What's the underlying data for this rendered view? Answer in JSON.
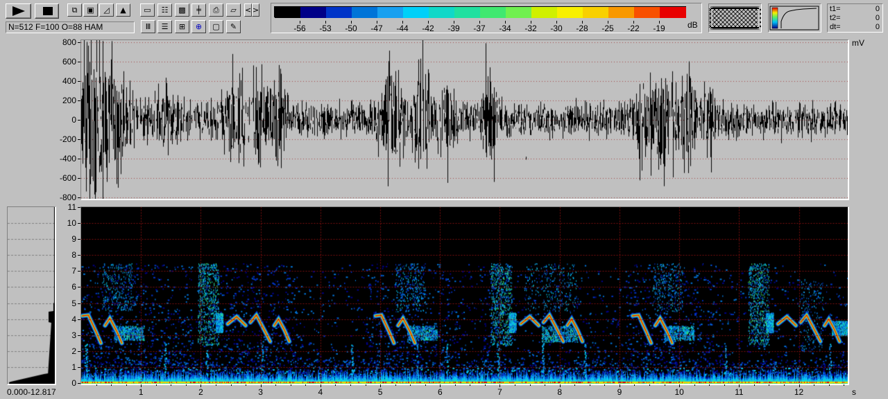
{
  "toolbar": {
    "play": "play-icon",
    "stop": "stop-icon",
    "status": "N=512 F=100 O=88 HAM",
    "row1_icons": [
      "copy-window-icon",
      "save-icon",
      "envelope-curve-icon",
      "spectrum-icon",
      "spectrogram-frame-icon",
      "scale-icon",
      "pattern-fill-icon",
      "grid-sound-icon",
      "print-icon",
      "open-folder-icon"
    ],
    "row2_icons": [
      "cursor-bars-icon",
      "section-list-icon",
      "grid-cross-icon",
      "blue-cross-icon",
      "frame-icon",
      "edit-note-icon"
    ],
    "scroll_left": "<",
    "scroll_right": ">"
  },
  "colorbar": {
    "unit": "dB",
    "labels": [
      "-56",
      "-53",
      "-50",
      "-47",
      "-44",
      "-42",
      "-39",
      "-37",
      "-34",
      "-32",
      "-30",
      "-28",
      "-25",
      "-22",
      "-19"
    ],
    "colors": [
      "#000000",
      "#000088",
      "#0034c8",
      "#0074d8",
      "#18a0f0",
      "#00d0f8",
      "#10d8c8",
      "#20e0a0",
      "#40e870",
      "#70f050",
      "#d0f000",
      "#f8f000",
      "#f8d000",
      "#f89800",
      "#f85000",
      "#e80000"
    ]
  },
  "cursor_readout": {
    "t1_label": "t1=",
    "t1_value": "0",
    "t2_label": "t2=",
    "t2_value": "0",
    "dt_label": "dt=",
    "dt_value": "0"
  },
  "waveform": {
    "unit": "mV",
    "y_ticks": [
      "800",
      "600",
      "400",
      "200",
      "0",
      "-200",
      "-400",
      "-600",
      "-800"
    ],
    "ylim": [
      -800,
      800
    ]
  },
  "spectrogram": {
    "y_ticks": [
      "11",
      "10",
      "9",
      "8",
      "7",
      "6",
      "5",
      "4",
      "3",
      "2",
      "1",
      "0"
    ],
    "ylim_khz": [
      0,
      11
    ],
    "x_ticks": [
      "1",
      "2",
      "3",
      "4",
      "5",
      "6",
      "7",
      "8",
      "9",
      "10",
      "11",
      "12"
    ],
    "x_unit": "s",
    "duration_s": 12.817
  },
  "power_spectrum": {
    "range_label": "0.000-12.817"
  }
}
